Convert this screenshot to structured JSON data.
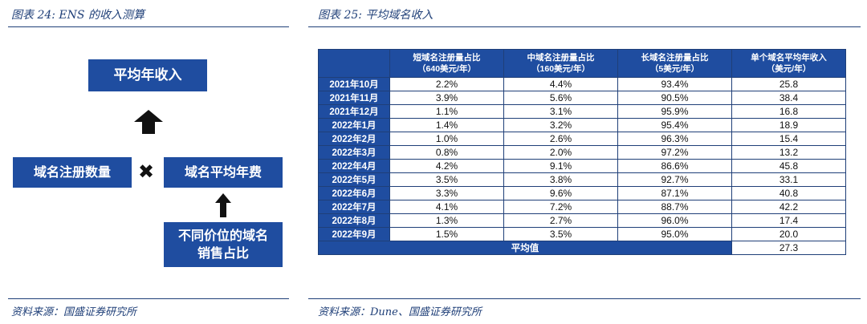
{
  "left": {
    "caption": "图表 24:  ENS 的收入测算",
    "source": "资料来源：国盛证券研究所",
    "diagram": {
      "top_box": "平均年收入",
      "left_box": "域名注册数量",
      "multiply_symbol": "✖",
      "right_box": "域名平均年费",
      "bottom_box_line1": "不同价位的域名",
      "bottom_box_line2": "销售占比"
    }
  },
  "right": {
    "caption": "图表 25:  平均域名收入",
    "source": "资料来源：Dune、国盛证券研究所",
    "table": {
      "headers": [
        {
          "line1": "短域名注册量占比",
          "line2": "（640美元/年）"
        },
        {
          "line1": "中域名注册量占比",
          "line2": "（160美元/年）"
        },
        {
          "line1": "长域名注册量占比",
          "line2": "（5美元/年）"
        },
        {
          "line1": "单个域名平均年收入",
          "line2": "（美元/年）"
        }
      ],
      "rows": [
        {
          "month": "2021年10月",
          "short": "2.2%",
          "mid": "4.4%",
          "long": "93.4%",
          "avg": "25.8"
        },
        {
          "month": "2021年11月",
          "short": "3.9%",
          "mid": "5.6%",
          "long": "90.5%",
          "avg": "38.4"
        },
        {
          "month": "2021年12月",
          "short": "1.1%",
          "mid": "3.1%",
          "long": "95.9%",
          "avg": "16.8"
        },
        {
          "month": "2022年1月",
          "short": "1.4%",
          "mid": "3.2%",
          "long": "95.4%",
          "avg": "18.9"
        },
        {
          "month": "2022年2月",
          "short": "1.0%",
          "mid": "2.6%",
          "long": "96.3%",
          "avg": "15.4"
        },
        {
          "month": "2022年3月",
          "short": "0.8%",
          "mid": "2.0%",
          "long": "97.2%",
          "avg": "13.2"
        },
        {
          "month": "2022年4月",
          "short": "4.2%",
          "mid": "9.1%",
          "long": "86.6%",
          "avg": "45.8"
        },
        {
          "month": "2022年5月",
          "short": "3.5%",
          "mid": "3.8%",
          "long": "92.7%",
          "avg": "33.1"
        },
        {
          "month": "2022年6月",
          "short": "3.3%",
          "mid": "9.6%",
          "long": "87.1%",
          "avg": "40.8"
        },
        {
          "month": "2022年7月",
          "short": "4.1%",
          "mid": "7.2%",
          "long": "88.7%",
          "avg": "42.2"
        },
        {
          "month": "2022年8月",
          "short": "1.3%",
          "mid": "2.7%",
          "long": "96.0%",
          "avg": "17.4"
        },
        {
          "month": "2022年9月",
          "short": "1.5%",
          "mid": "3.5%",
          "long": "95.0%",
          "avg": "20.0"
        }
      ],
      "average_label": "平均值",
      "average_value": "27.3"
    }
  },
  "colors": {
    "brand_blue": "#1f4da0",
    "caption_blue": "#1f3f78"
  }
}
